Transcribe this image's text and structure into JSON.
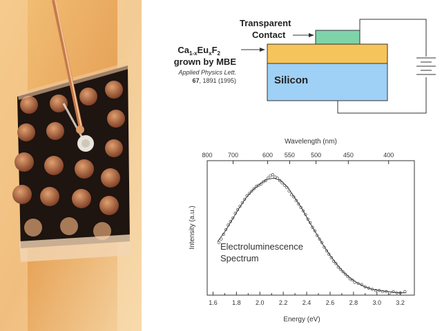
{
  "device": {
    "contact_label_line1": "Transparent",
    "contact_label_line2": "Contact",
    "film_formula": "Ca1-xEuxF2",
    "film_line2": "grown by MBE",
    "citation_journal": "Applied Physics Lett.",
    "citation_volume": "67",
    "citation_rest": ", 1891 (1995)",
    "substrate_label": "Silicon",
    "colors": {
      "contact": "#7fd3a8",
      "film": "#f5c45a",
      "substrate": "#9fd0f5"
    }
  },
  "chart_data": {
    "type": "scatter",
    "title": "",
    "annotation_line1": "Electroluminescence",
    "annotation_line2": "Spectrum",
    "xlabel": "Energy (eV)",
    "ylabel": "Intensity (a.u.)",
    "top_xlabel": "Wavelength (nm)",
    "xlim": [
      1.55,
      3.32
    ],
    "ylim": [
      0,
      1.15
    ],
    "x_ticks": [
      "1.6",
      "1.8",
      "2.0",
      "2.2",
      "2.4",
      "2.6",
      "2.8",
      "3.0",
      "3.2"
    ],
    "top_ticks": [
      "800",
      "700",
      "600",
      "550",
      "500",
      "450",
      "400"
    ],
    "grid": false,
    "series": [
      {
        "points": [
          [
            1.65,
            0.45
          ],
          [
            1.67,
            0.48
          ],
          [
            1.69,
            0.52
          ],
          [
            1.71,
            0.56
          ],
          [
            1.73,
            0.6
          ],
          [
            1.75,
            0.63
          ],
          [
            1.77,
            0.66
          ],
          [
            1.79,
            0.7
          ],
          [
            1.81,
            0.73
          ],
          [
            1.83,
            0.76
          ],
          [
            1.85,
            0.79
          ],
          [
            1.87,
            0.82
          ],
          [
            1.89,
            0.85
          ],
          [
            1.91,
            0.87
          ],
          [
            1.93,
            0.89
          ],
          [
            1.95,
            0.91
          ],
          [
            1.97,
            0.93
          ],
          [
            1.99,
            0.94
          ],
          [
            2.01,
            0.95
          ],
          [
            2.03,
            0.97
          ],
          [
            2.05,
            0.98
          ],
          [
            2.07,
            1.0
          ],
          [
            2.09,
            1.02
          ],
          [
            2.11,
            1.03
          ],
          [
            2.13,
            1.01
          ],
          [
            2.15,
            1.0
          ],
          [
            2.17,
            0.98
          ],
          [
            2.19,
            0.96
          ],
          [
            2.21,
            0.94
          ],
          [
            2.23,
            0.92
          ],
          [
            2.25,
            0.89
          ],
          [
            2.27,
            0.86
          ],
          [
            2.29,
            0.84
          ],
          [
            2.31,
            0.81
          ],
          [
            2.33,
            0.78
          ],
          [
            2.35,
            0.75
          ],
          [
            2.37,
            0.72
          ],
          [
            2.39,
            0.69
          ],
          [
            2.41,
            0.65
          ],
          [
            2.43,
            0.62
          ],
          [
            2.45,
            0.58
          ],
          [
            2.47,
            0.55
          ],
          [
            2.49,
            0.51
          ],
          [
            2.51,
            0.48
          ],
          [
            2.53,
            0.45
          ],
          [
            2.55,
            0.41
          ],
          [
            2.57,
            0.38
          ],
          [
            2.59,
            0.35
          ],
          [
            2.61,
            0.32
          ],
          [
            2.63,
            0.29
          ],
          [
            2.65,
            0.27
          ],
          [
            2.67,
            0.24
          ],
          [
            2.69,
            0.22
          ],
          [
            2.71,
            0.2
          ],
          [
            2.73,
            0.18
          ],
          [
            2.75,
            0.16
          ],
          [
            2.77,
            0.14
          ],
          [
            2.79,
            0.13
          ],
          [
            2.81,
            0.11
          ],
          [
            2.84,
            0.1
          ],
          [
            2.87,
            0.09
          ],
          [
            2.9,
            0.07
          ],
          [
            2.93,
            0.06
          ],
          [
            2.96,
            0.05
          ],
          [
            2.99,
            0.04
          ],
          [
            3.02,
            0.04
          ],
          [
            3.05,
            0.03
          ],
          [
            3.08,
            0.03
          ],
          [
            3.11,
            0.02
          ],
          [
            3.14,
            0.03
          ],
          [
            3.17,
            0.02
          ],
          [
            3.2,
            0.02
          ],
          [
            3.24,
            0.03
          ]
        ],
        "fit": [
          [
            1.64,
            0.46
          ],
          [
            1.7,
            0.54
          ],
          [
            1.76,
            0.64
          ],
          [
            1.82,
            0.74
          ],
          [
            1.88,
            0.83
          ],
          [
            1.94,
            0.9
          ],
          [
            2.0,
            0.95
          ],
          [
            2.06,
            0.99
          ],
          [
            2.12,
            1.0
          ],
          [
            2.18,
            0.98
          ],
          [
            2.24,
            0.92
          ],
          [
            2.3,
            0.83
          ],
          [
            2.36,
            0.74
          ],
          [
            2.42,
            0.63
          ],
          [
            2.48,
            0.53
          ],
          [
            2.54,
            0.43
          ],
          [
            2.6,
            0.34
          ],
          [
            2.66,
            0.26
          ],
          [
            2.72,
            0.19
          ],
          [
            2.78,
            0.14
          ],
          [
            2.84,
            0.1
          ],
          [
            2.9,
            0.07
          ],
          [
            2.96,
            0.05
          ],
          [
            3.02,
            0.04
          ],
          [
            3.1,
            0.03
          ],
          [
            3.18,
            0.02
          ],
          [
            3.25,
            0.02
          ]
        ]
      }
    ]
  }
}
